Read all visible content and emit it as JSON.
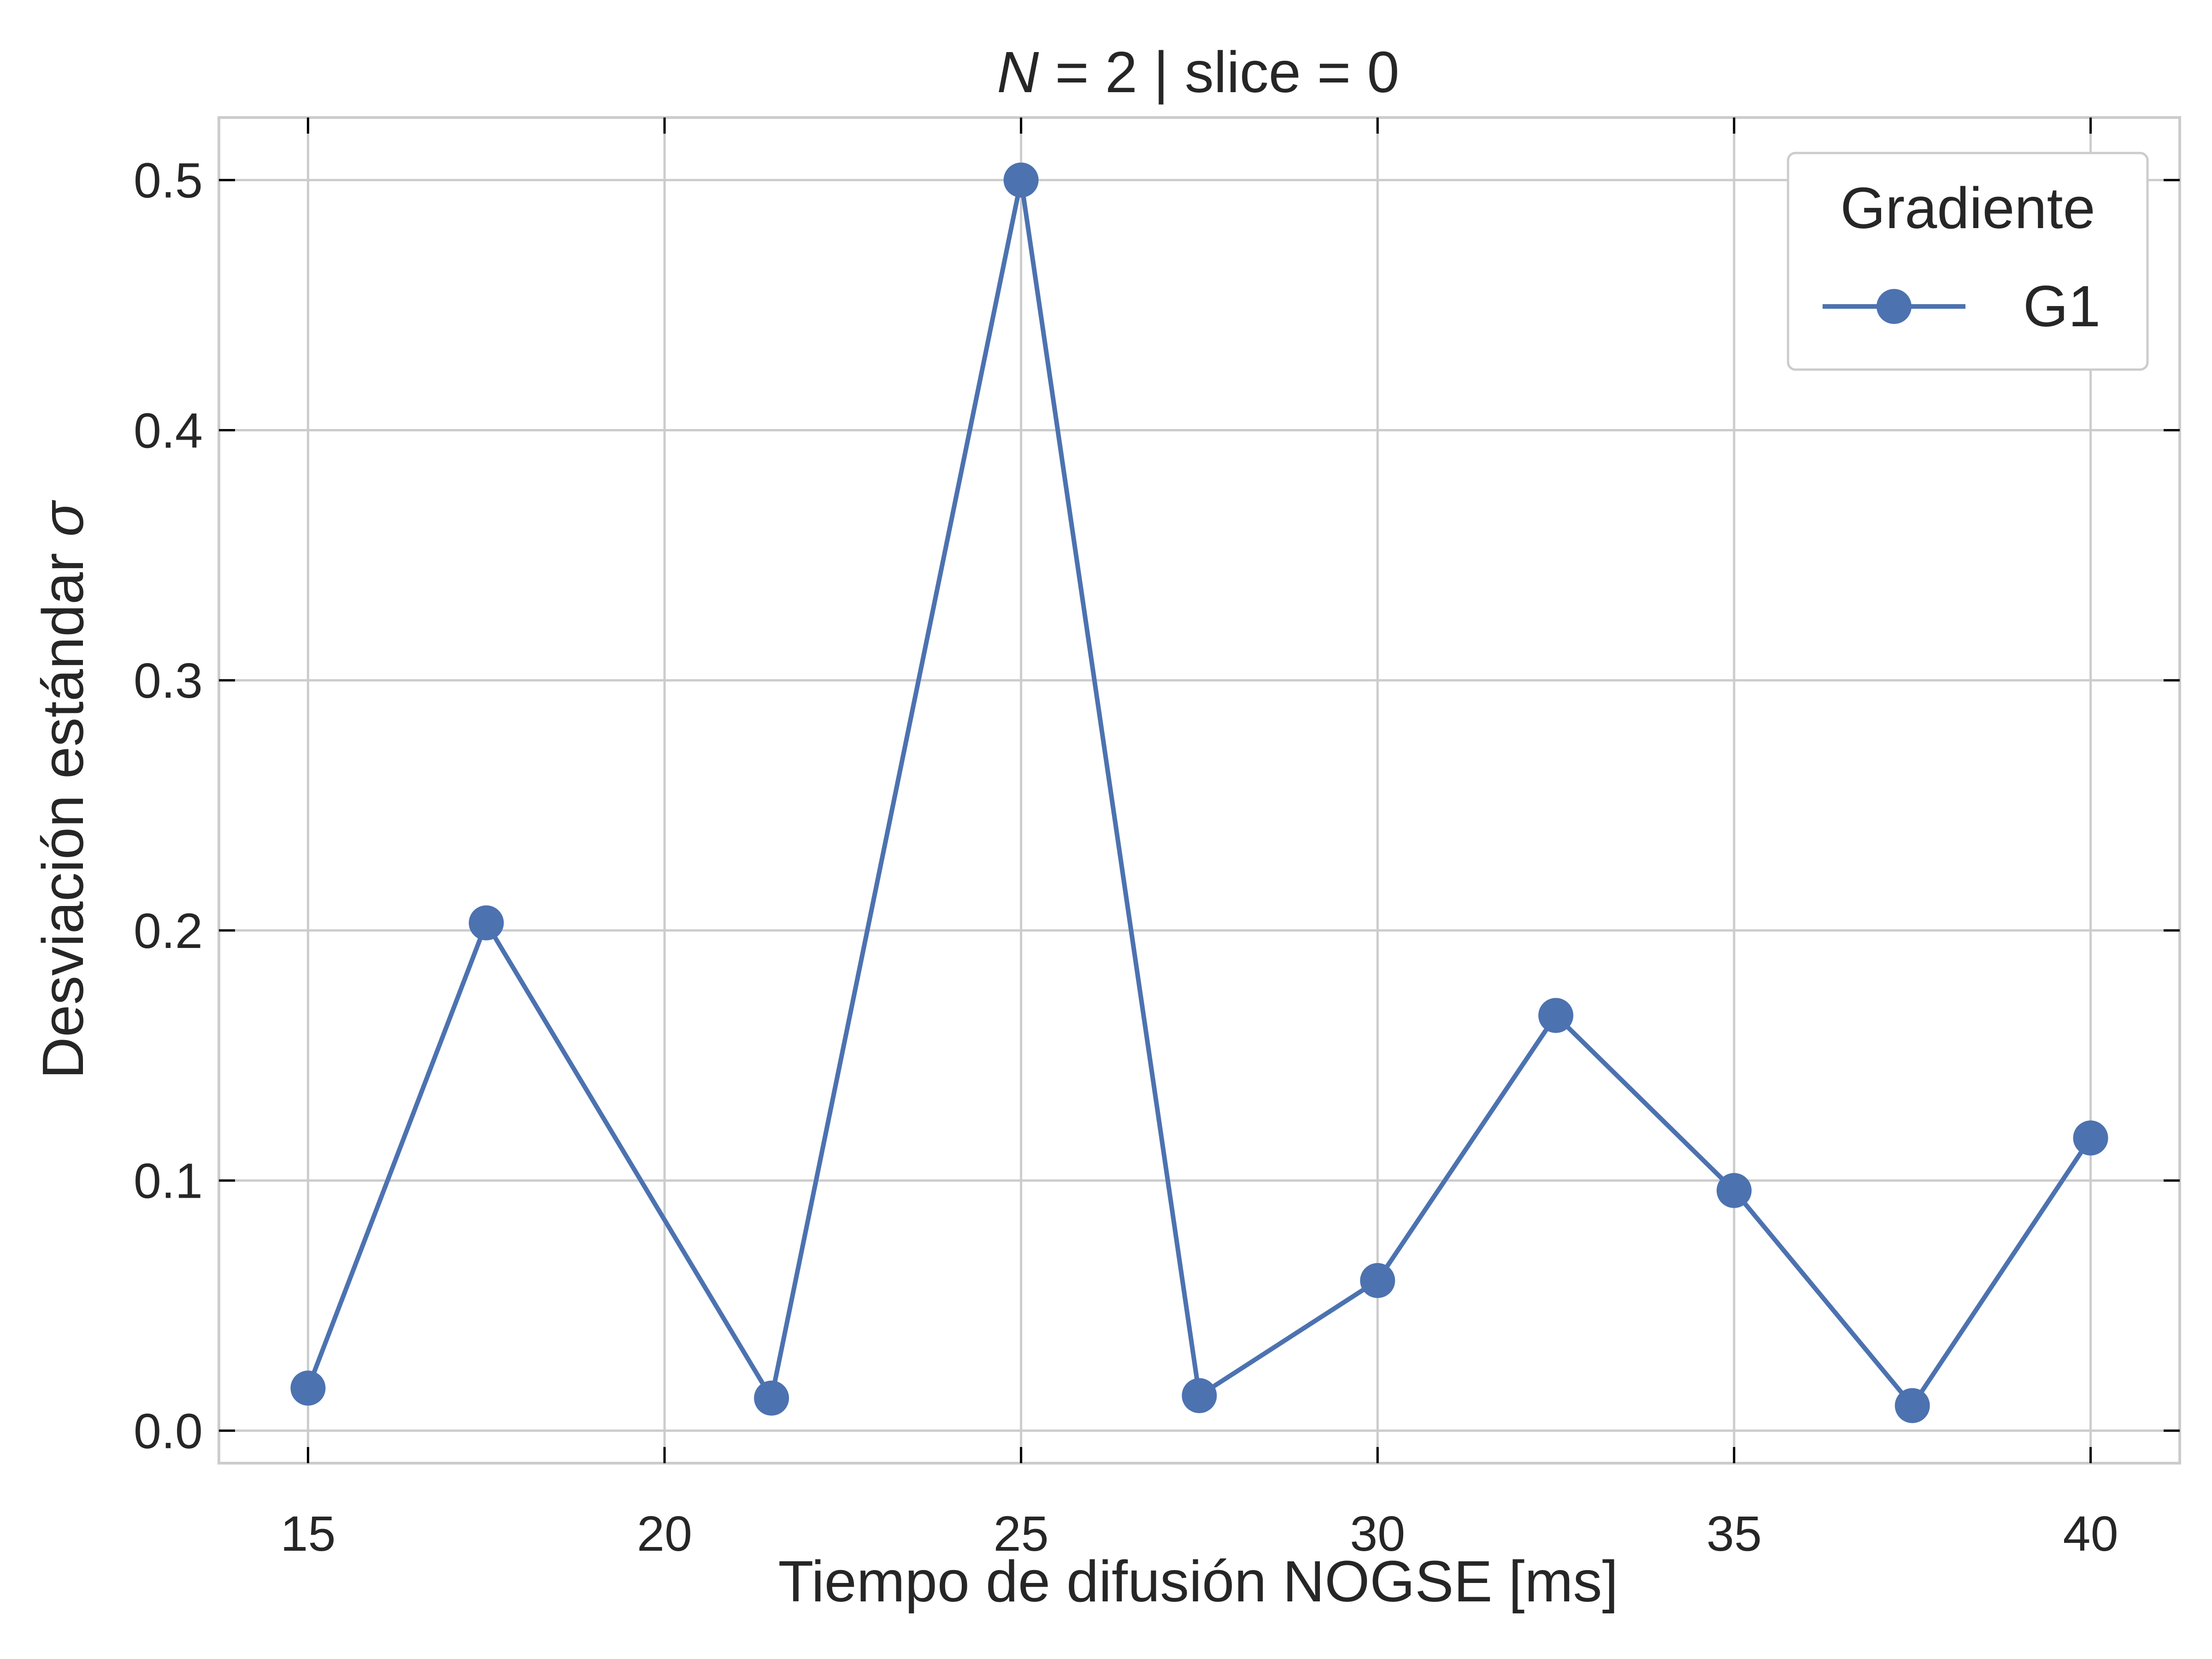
{
  "chart_data": {
    "type": "line",
    "title_parts": {
      "var": "N",
      "rest": " = 2 | slice = 0"
    },
    "xlabel": "Tiempo de difusión NOGSE [ms]",
    "ylabel_parts": {
      "text": "Desviación estándar ",
      "sym": "σ"
    },
    "xlim": [
      13.75,
      41.25
    ],
    "ylim": [
      -0.013,
      0.525
    ],
    "xticks": [
      15,
      20,
      25,
      30,
      35,
      40
    ],
    "xtick_labels": [
      "15",
      "20",
      "25",
      "30",
      "35",
      "40"
    ],
    "yticks": [
      0.0,
      0.1,
      0.2,
      0.3,
      0.4,
      0.5
    ],
    "ytick_labels": [
      "0.0",
      "0.1",
      "0.2",
      "0.3",
      "0.4",
      "0.5"
    ],
    "grid": true,
    "legend": {
      "title": "Gradiente",
      "placement": "top-right"
    },
    "series": [
      {
        "name": "G1",
        "color": "#4c72b0",
        "marker": "circle",
        "x": [
          15,
          17.5,
          21.5,
          25,
          27.5,
          30,
          32.5,
          35,
          37.5,
          40
        ],
        "y": [
          0.017,
          0.203,
          0.013,
          0.5,
          0.014,
          0.06,
          0.166,
          0.096,
          0.01,
          0.117
        ]
      }
    ]
  }
}
